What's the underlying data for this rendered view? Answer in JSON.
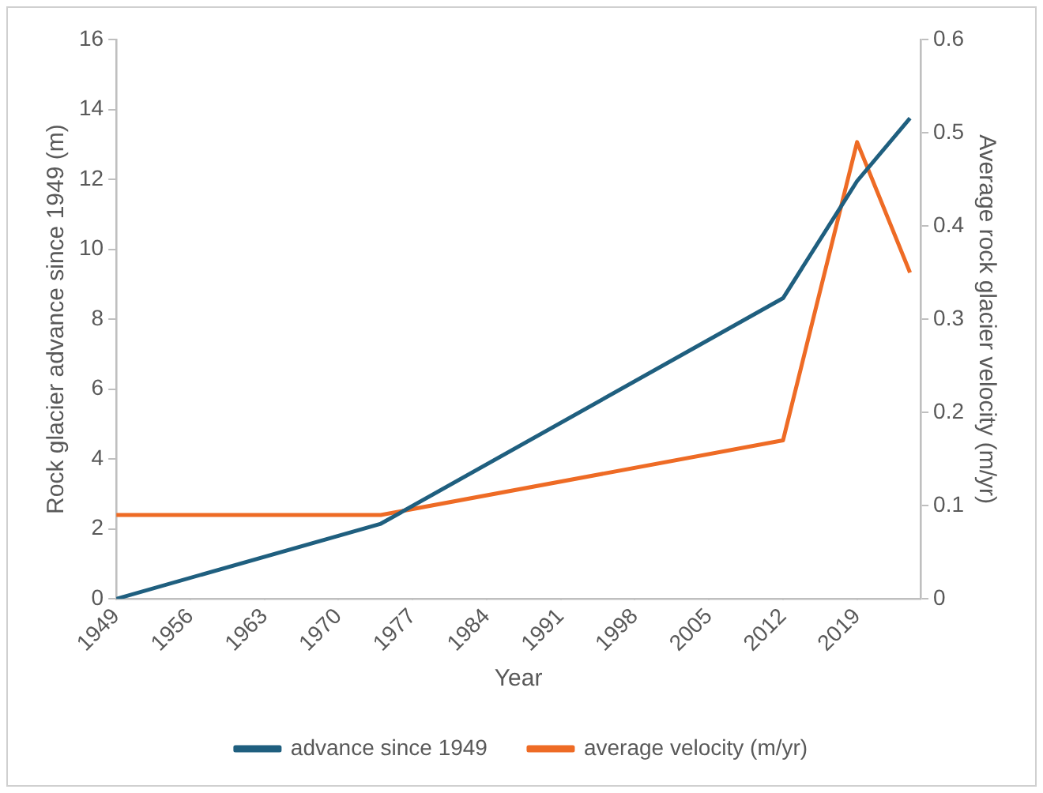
{
  "chart_data": {
    "type": "line",
    "xlabel": "Year",
    "ylabel": "Rock glacier advance since 1949 (m)",
    "y2label": "Average rock glacier velocity (m/yr)",
    "x": [
      1949,
      1974,
      2012,
      2019,
      2024
    ],
    "series": [
      {
        "name": "advance since 1949",
        "color": "#1f5f7f",
        "values": [
          0,
          2.15,
          8.6,
          11.95,
          13.75
        ]
      },
      {
        "name": "average velocity (m/yr)",
        "color": "#ee6b25",
        "axis": "y2",
        "values": [
          0.09,
          0.09,
          0.17,
          0.49,
          0.35
        ]
      }
    ],
    "xlim": [
      1949,
      2025
    ],
    "xticks": [
      1949,
      1956,
      1963,
      1970,
      1977,
      1984,
      1991,
      1998,
      2005,
      2012,
      2019
    ],
    "ylim": [
      0,
      16
    ],
    "yticks": [
      0,
      2,
      4,
      6,
      8,
      10,
      12,
      14,
      16
    ],
    "y2lim": [
      0,
      0.6
    ],
    "y2ticks": [
      0,
      0.1,
      0.2,
      0.3,
      0.4,
      0.5,
      0.6
    ],
    "grid": false,
    "legend": "bottom",
    "marker": "none",
    "line_style": "solid"
  }
}
